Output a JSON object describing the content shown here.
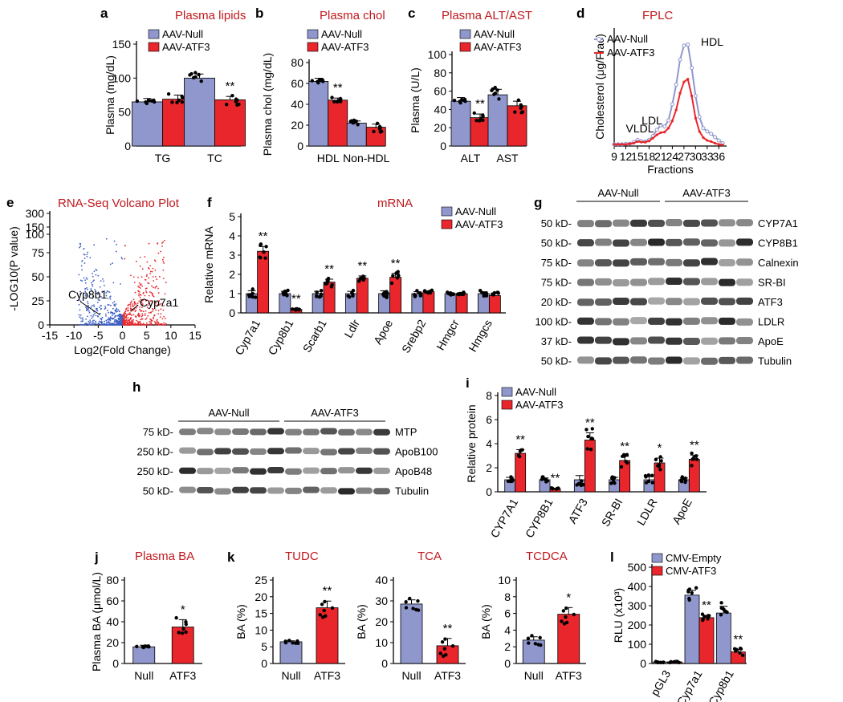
{
  "colors": {
    "null": "#8f97cc",
    "atf3": "#e8262b",
    "title": "#c0191e",
    "volcano_blue": "#3b5fc4",
    "volcano_red": "#e8262b"
  },
  "chart_data": [
    {
      "id": "a",
      "panel_label": "a",
      "type": "bar",
      "title": "Plasma lipids",
      "ylabel": "Plasma (mg/dL)",
      "ylim": [
        0,
        150
      ],
      "yticks": [
        "0",
        "50",
        "100",
        "150"
      ],
      "categories": [
        "TG",
        "TC"
      ],
      "legend": [
        "AAV-Null",
        "AAV-ATF3"
      ],
      "series": [
        {
          "name": "AAV-Null",
          "values": [
            65,
            100
          ],
          "err": [
            5,
            6
          ]
        },
        {
          "name": "AAV-ATF3",
          "values": [
            69,
            68
          ],
          "err": [
            6,
            5
          ]
        }
      ],
      "annotations": [
        {
          "category": "TC",
          "series": "AAV-ATF3",
          "text": "**"
        }
      ]
    },
    {
      "id": "b",
      "panel_label": "b",
      "type": "bar",
      "title": "Plasma chol",
      "ylabel": "Plasma chol (mg/dL)",
      "ylim": [
        0,
        80
      ],
      "yticks": [
        "0",
        "20",
        "40",
        "60",
        "80"
      ],
      "categories": [
        "HDL",
        "Non-HDL"
      ],
      "legend": [
        "AAV-Null",
        "AAV-ATF3"
      ],
      "series": [
        {
          "name": "AAV-Null",
          "values": [
            62,
            22
          ],
          "err": [
            3,
            2
          ]
        },
        {
          "name": "AAV-ATF3",
          "values": [
            44,
            18
          ],
          "err": [
            2,
            3
          ]
        }
      ],
      "annotations": [
        {
          "category": "HDL",
          "series": "AAV-ATF3",
          "text": "**"
        }
      ]
    },
    {
      "id": "c",
      "panel_label": "c",
      "type": "bar",
      "title": "Plasma ALT/AST",
      "ylabel": "Plasma (U/L)",
      "ylim": [
        0,
        100
      ],
      "yticks": [
        "0",
        "20",
        "40",
        "60",
        "80",
        "100"
      ],
      "categories": [
        "ALT",
        "AST"
      ],
      "legend": [
        "AAV-Null",
        "AAV-ATF3"
      ],
      "series": [
        {
          "name": "AAV-Null",
          "values": [
            49,
            56
          ],
          "err": [
            4,
            6
          ]
        },
        {
          "name": "AAV-ATF3",
          "values": [
            31,
            44
          ],
          "err": [
            4,
            5
          ]
        }
      ],
      "annotations": [
        {
          "category": "ALT",
          "series": "AAV-ATF3",
          "text": "**"
        }
      ]
    },
    {
      "id": "d",
      "panel_label": "d",
      "type": "line",
      "title": "FPLC",
      "ylabel": "Cholesterol (μg/Frac)",
      "xlabel": "Fractions",
      "xticks": [
        "9",
        "12",
        "15",
        "18",
        "21",
        "24",
        "27",
        "30",
        "33",
        "36"
      ],
      "xlim": [
        9,
        38
      ],
      "ylim": [
        0,
        20
      ],
      "x": [
        9,
        10,
        11,
        12,
        13,
        14,
        15,
        16,
        17,
        18,
        19,
        20,
        21,
        22,
        23,
        24,
        25,
        26,
        27,
        28,
        29,
        30,
        31,
        32,
        33,
        34,
        35,
        36,
        37
      ],
      "series": [
        {
          "name": "AAV-Null",
          "values": [
            0.3,
            0.3,
            0.3,
            0.4,
            0.4,
            0.7,
            1.1,
            0.9,
            0.8,
            1.1,
            1.8,
            2.9,
            3.7,
            3.5,
            4.6,
            7.5,
            11,
            15.5,
            18,
            18.2,
            14,
            9,
            5.2,
            3.2,
            2.6,
            2.2,
            1.6,
            1,
            0.5
          ]
        },
        {
          "name": "AAV-ATF3",
          "values": [
            0.3,
            0.3,
            0.3,
            0.3,
            0.4,
            0.5,
            0.8,
            0.7,
            0.7,
            0.9,
            1.4,
            2,
            2.4,
            2.5,
            3.2,
            4.5,
            6.5,
            9.5,
            11.5,
            12,
            9,
            5,
            2.6,
            1.5,
            1,
            0.8,
            0.5,
            0.3,
            0.2
          ]
        }
      ],
      "annotations": [
        "VLDL",
        "LDL",
        "HDL"
      ]
    },
    {
      "id": "e",
      "panel_label": "e",
      "type": "scatter",
      "title": "RNA-Seq Volcano Plot",
      "xlabel": "Log2(Fold Change)",
      "ylabel": "-LOG10(P value)",
      "xticks": [
        "-15",
        "-10",
        "-5",
        "0",
        "5",
        "10",
        "15"
      ],
      "yticks": [
        "0",
        "25",
        "50",
        "75",
        "100",
        "150",
        "300"
      ],
      "xlim": [
        -15,
        15
      ],
      "labels": [
        "Cyp8b1",
        "Cyp7a1"
      ]
    },
    {
      "id": "f",
      "panel_label": "f",
      "type": "bar",
      "title": "mRNA",
      "ylabel": "Relative mRNA",
      "ylim": [
        0,
        5
      ],
      "yticks": [
        "0",
        "1",
        "2",
        "3",
        "4",
        "5"
      ],
      "categories": [
        "Cyp7a1",
        "Cyp8b1",
        "Scarb1",
        "Ldlr",
        "Apoe",
        "Srebp2",
        "Hmgcr",
        "Hmgcs"
      ],
      "legend": [
        "AAV-Null",
        "AAV-ATF3"
      ],
      "series": [
        {
          "name": "AAV-Null",
          "values": [
            1,
            1,
            1,
            1,
            1,
            1,
            1,
            1
          ],
          "err": [
            0.15,
            0.12,
            0.12,
            0.12,
            0.15,
            0.1,
            0.05,
            0.1
          ]
        },
        {
          "name": "AAV-ATF3",
          "values": [
            3.2,
            0.18,
            1.6,
            1.8,
            1.85,
            1.1,
            1,
            0.9
          ],
          "err": [
            0.25,
            0.03,
            0.15,
            0.12,
            0.2,
            0.05,
            0.05,
            0.1
          ]
        }
      ],
      "annotations": [
        {
          "i": 0,
          "text": "**"
        },
        {
          "i": 1,
          "text": "**"
        },
        {
          "i": 2,
          "text": "**"
        },
        {
          "i": 3,
          "text": "**"
        },
        {
          "i": 4,
          "text": "**"
        }
      ]
    },
    {
      "id": "i",
      "panel_label": "i",
      "type": "bar",
      "title": "",
      "ylabel": "Relative protein",
      "ylim": [
        0,
        8
      ],
      "yticks": [
        "0",
        "2",
        "4",
        "6",
        "8"
      ],
      "categories": [
        "CYP7A1",
        "CYP8B1",
        "ATF3",
        "SR-BI",
        "LDLR",
        "ApoE"
      ],
      "legend": [
        "AAV-Null",
        "AAV-ATF3"
      ],
      "series": [
        {
          "name": "AAV-Null",
          "values": [
            1,
            1,
            1,
            1,
            1,
            1
          ],
          "err": [
            0.2,
            0.15,
            0.35,
            0.2,
            0.25,
            0.15
          ]
        },
        {
          "name": "AAV-ATF3",
          "values": [
            3.2,
            0.25,
            4.3,
            2.6,
            2.4,
            2.7
          ],
          "err": [
            0.3,
            0.05,
            0.6,
            0.35,
            0.4,
            0.35
          ]
        }
      ],
      "annotations": [
        {
          "i": 0,
          "text": "**"
        },
        {
          "i": 1,
          "text": "**"
        },
        {
          "i": 2,
          "text": "**"
        },
        {
          "i": 3,
          "text": "**"
        },
        {
          "i": 4,
          "text": "*"
        },
        {
          "i": 5,
          "text": "**"
        }
      ]
    },
    {
      "id": "j",
      "panel_label": "j",
      "type": "bar",
      "title": "Plasma BA",
      "ylabel": "Plasma BA (μmol/L)",
      "ylim": [
        0,
        80
      ],
      "yticks": [
        "0",
        "20",
        "40",
        "60",
        "80"
      ],
      "categories": [
        "Null",
        "ATF3"
      ],
      "values": [
        16,
        35
      ],
      "err": [
        1.5,
        7
      ],
      "annotations": [
        {
          "i": 1,
          "text": "*"
        }
      ]
    },
    {
      "id": "k1",
      "panel_label": "k",
      "type": "bar",
      "title": "TUDC",
      "ylabel": "BA (%)",
      "ylim": [
        0,
        25
      ],
      "yticks": [
        "0",
        "5",
        "10",
        "15",
        "20",
        "25"
      ],
      "categories": [
        "Null",
        "ATF3"
      ],
      "values": [
        6.5,
        16.7
      ],
      "err": [
        0.3,
        2
      ],
      "annotations": [
        {
          "i": 1,
          "text": "**"
        }
      ]
    },
    {
      "id": "k2",
      "panel_label": "",
      "type": "bar",
      "title": "TCA",
      "ylabel": "BA (%)",
      "ylim": [
        0,
        40
      ],
      "yticks": [
        "0",
        "10",
        "20",
        "30",
        "40"
      ],
      "categories": [
        "Null",
        "ATF3"
      ],
      "values": [
        28.5,
        8.5
      ],
      "err": [
        2,
        3.5
      ],
      "annotations": [
        {
          "i": 1,
          "text": "**"
        }
      ]
    },
    {
      "id": "k3",
      "panel_label": "",
      "type": "bar",
      "title": "TCDCA",
      "ylabel": "BA (%)",
      "ylim": [
        0,
        10
      ],
      "yticks": [
        "0",
        "2",
        "4",
        "6",
        "8",
        "10"
      ],
      "categories": [
        "Null",
        "ATF3"
      ],
      "values": [
        2.8,
        5.9
      ],
      "err": [
        0.4,
        0.8
      ],
      "annotations": [
        {
          "i": 1,
          "text": "*"
        }
      ]
    },
    {
      "id": "l",
      "panel_label": "l",
      "type": "bar",
      "title": "",
      "ylabel": "RLU (x10³)",
      "ylim": [
        0,
        500
      ],
      "yticks": [
        "0",
        "100",
        "200",
        "300",
        "400",
        "500"
      ],
      "categories": [
        "pGL3",
        "Cyp7a1",
        "Cyp8b1"
      ],
      "legend": [
        "CMV-Empty",
        "CMV-ATF3"
      ],
      "series": [
        {
          "name": "CMV-Empty",
          "values": [
            8,
            355,
            262
          ],
          "err": [
            2,
            25,
            35
          ]
        },
        {
          "name": "CMV-ATF3",
          "values": [
            8,
            238,
            60
          ],
          "err": [
            2,
            12,
            12
          ]
        }
      ],
      "annotations": [
        {
          "i": 1,
          "text": "**"
        },
        {
          "i": 2,
          "text": "**"
        }
      ]
    }
  ],
  "blots": {
    "g": {
      "panel_label": "g",
      "groups": [
        "AAV-Null",
        "AAV-ATF3"
      ],
      "proteins": [
        "CYP7A1",
        "CYP8B1",
        "Calnexin",
        "SR-BI",
        "ATF3",
        "LDLR",
        "ApoE",
        "Tubulin"
      ],
      "markers": [
        "50 kD-",
        "50 kD-",
        "75 kD-",
        "75 kD-",
        "20 kD-",
        "100 kD-",
        "37 kD-",
        "50 kD-"
      ]
    },
    "h": {
      "panel_label": "h",
      "groups": [
        "AAV-Null",
        "AAV-ATF3"
      ],
      "proteins": [
        "MTP",
        "ApoB100",
        "ApoB48",
        "Tubulin"
      ],
      "markers": [
        "75 kD-",
        "250 kD-",
        "250 kD-",
        "50 kD-"
      ]
    }
  }
}
